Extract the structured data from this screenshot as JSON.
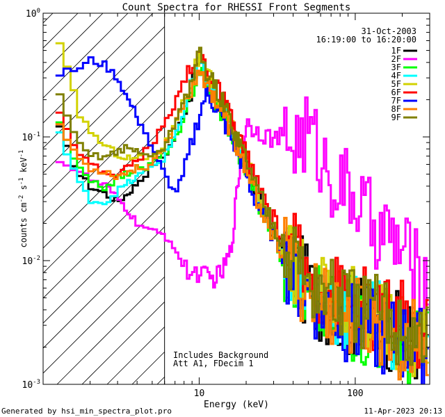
{
  "chart_data": {
    "type": "line",
    "title": "Count Spectra for RHESSI Front Segments",
    "xlabel": "Energy (keV)",
    "ylabel_parts": [
      "counts cm",
      "-2",
      " s",
      "-1",
      " keV",
      "-1"
    ],
    "x_scale": "log",
    "y_scale": "log",
    "xlim": [
      1,
      300
    ],
    "ylim": [
      0.001,
      1
    ],
    "x_major_ticks": [
      {
        "value": 10,
        "label": "10"
      },
      {
        "value": 100,
        "label": "100"
      }
    ],
    "y_major_ticks": [
      {
        "value": 0.001,
        "base": "10",
        "exp": "-3"
      },
      {
        "value": 0.01,
        "base": "10",
        "exp": "-2"
      },
      {
        "value": 0.1,
        "base": "10",
        "exp": "-1"
      },
      {
        "value": 1,
        "base": "10",
        "exp": "0"
      }
    ],
    "hatch_region": {
      "xmin": 1,
      "xmax": 6
    },
    "date": "31-Oct-2003",
    "time_range": "16:19:00 to 16:20:00",
    "annotations": [
      "Includes Background",
      "Att A1, FDecim 1"
    ],
    "series": [
      {
        "name": "1F",
        "color": "#000000",
        "profile": "std",
        "shift": 0.0,
        "low": [
          [
            1.2,
            0.17
          ],
          [
            1.3,
            0.1
          ],
          [
            1.5,
            0.07
          ],
          [
            1.7,
            0.05
          ],
          [
            2.0,
            0.04
          ],
          [
            2.5,
            0.035
          ],
          [
            3.0,
            0.03
          ],
          [
            3.5,
            0.035
          ],
          [
            4.0,
            0.042
          ],
          [
            4.5,
            0.05
          ],
          [
            5.0,
            0.06
          ],
          [
            6.0,
            0.07
          ],
          [
            7.0,
            0.1
          ],
          [
            8.0,
            0.16
          ]
        ]
      },
      {
        "name": "2F",
        "color": "#ff00ff",
        "profile": "det2",
        "shift": 0.0,
        "low": [
          [
            1.2,
            0.07
          ],
          [
            1.4,
            0.06
          ],
          [
            1.6,
            0.055
          ],
          [
            1.8,
            0.05
          ],
          [
            2.0,
            0.045
          ],
          [
            2.5,
            0.04
          ],
          [
            3.0,
            0.032
          ],
          [
            3.5,
            0.025
          ],
          [
            4.0,
            0.02
          ],
          [
            5.0,
            0.017
          ],
          [
            6.0,
            0.016
          ]
        ]
      },
      {
        "name": "3F",
        "color": "#00ff00",
        "profile": "std",
        "shift": -0.03,
        "low": [
          [
            1.2,
            0.19
          ],
          [
            1.3,
            0.13
          ],
          [
            1.5,
            0.08
          ],
          [
            1.7,
            0.06
          ],
          [
            2.0,
            0.045
          ],
          [
            2.5,
            0.042
          ],
          [
            3.0,
            0.05
          ],
          [
            3.5,
            0.055
          ],
          [
            4.0,
            0.06
          ],
          [
            4.5,
            0.06
          ],
          [
            5.0,
            0.065
          ],
          [
            6.0,
            0.08
          ],
          [
            7.0,
            0.1
          ],
          [
            8.0,
            0.14
          ]
        ]
      },
      {
        "name": "4F",
        "color": "#00ffff",
        "profile": "std",
        "shift": 0.02,
        "low": [
          [
            1.2,
            0.15
          ],
          [
            1.3,
            0.09
          ],
          [
            1.5,
            0.06
          ],
          [
            1.7,
            0.04
          ],
          [
            2.0,
            0.03
          ],
          [
            2.5,
            0.028
          ],
          [
            3.0,
            0.035
          ],
          [
            3.5,
            0.04
          ],
          [
            4.0,
            0.045
          ],
          [
            4.5,
            0.05
          ],
          [
            5.0,
            0.055
          ],
          [
            6.0,
            0.065
          ],
          [
            7.0,
            0.1
          ],
          [
            8.0,
            0.15
          ]
        ]
      },
      {
        "name": "5F",
        "color": "#d2d200",
        "profile": "std",
        "shift": 0.05,
        "low": [
          [
            1.2,
            0.62
          ],
          [
            1.3,
            0.45
          ],
          [
            1.5,
            0.25
          ],
          [
            1.7,
            0.14
          ],
          [
            2.0,
            0.1
          ],
          [
            2.5,
            0.075
          ],
          [
            3.0,
            0.065
          ],
          [
            3.5,
            0.06
          ],
          [
            4.0,
            0.06
          ],
          [
            4.5,
            0.06
          ],
          [
            5.0,
            0.062
          ],
          [
            6.0,
            0.075
          ],
          [
            7.0,
            0.12
          ],
          [
            8.0,
            0.18
          ]
        ]
      },
      {
        "name": "6F",
        "color": "#ff0000",
        "profile": "std",
        "shift": 0.1,
        "low": [
          [
            1.2,
            0.18
          ],
          [
            1.3,
            0.12
          ],
          [
            1.5,
            0.08
          ],
          [
            1.7,
            0.06
          ],
          [
            2.0,
            0.048
          ],
          [
            2.5,
            0.04
          ],
          [
            3.0,
            0.04
          ],
          [
            3.5,
            0.045
          ],
          [
            4.0,
            0.052
          ],
          [
            4.5,
            0.06
          ],
          [
            5.0,
            0.07
          ],
          [
            6.0,
            0.1
          ],
          [
            7.0,
            0.15
          ],
          [
            8.0,
            0.25
          ]
        ]
      },
      {
        "name": "7F",
        "color": "#0000ff",
        "profile": "det7",
        "shift": 0.0,
        "low": [
          [
            1.2,
            0.32
          ],
          [
            1.5,
            0.34
          ],
          [
            1.8,
            0.37
          ],
          [
            2.0,
            0.42
          ],
          [
            2.5,
            0.38
          ],
          [
            3.0,
            0.3
          ],
          [
            3.5,
            0.2
          ],
          [
            4.0,
            0.15
          ],
          [
            4.5,
            0.11
          ],
          [
            5.0,
            0.08
          ],
          [
            6.0,
            0.05
          ],
          [
            7.0,
            0.035
          ]
        ]
      },
      {
        "name": "8F",
        "color": "#ff8000",
        "profile": "std",
        "shift": -0.02,
        "low": [
          [
            1.2,
            0.18
          ],
          [
            1.3,
            0.12
          ],
          [
            1.5,
            0.09
          ],
          [
            1.7,
            0.07
          ],
          [
            2.0,
            0.058
          ],
          [
            2.5,
            0.055
          ],
          [
            3.0,
            0.05
          ],
          [
            3.5,
            0.055
          ],
          [
            4.0,
            0.058
          ],
          [
            4.5,
            0.06
          ],
          [
            5.0,
            0.065
          ],
          [
            6.0,
            0.09
          ],
          [
            7.0,
            0.13
          ],
          [
            8.0,
            0.2
          ]
        ]
      },
      {
        "name": "9F",
        "color": "#808000",
        "profile": "std",
        "shift": 0.07,
        "low": [
          [
            1.2,
            0.27
          ],
          [
            1.3,
            0.16
          ],
          [
            1.5,
            0.1
          ],
          [
            1.7,
            0.075
          ],
          [
            2.0,
            0.06
          ],
          [
            2.5,
            0.06
          ],
          [
            3.0,
            0.065
          ],
          [
            3.5,
            0.07
          ],
          [
            4.0,
            0.065
          ],
          [
            4.5,
            0.06
          ],
          [
            5.0,
            0.062
          ],
          [
            6.0,
            0.07
          ],
          [
            7.0,
            0.11
          ],
          [
            8.0,
            0.17
          ]
        ]
      }
    ],
    "profiles": {
      "std": [
        [
          8.0,
          0.16
        ],
        [
          9.0,
          0.25
        ],
        [
          10.0,
          0.4
        ],
        [
          11.0,
          0.3
        ],
        [
          13.0,
          0.2
        ],
        [
          15.0,
          0.14
        ],
        [
          17.0,
          0.09
        ],
        [
          20.0,
          0.06
        ],
        [
          22.0,
          0.04
        ],
        [
          25.0,
          0.028
        ],
        [
          30.0,
          0.017
        ],
        [
          35.0,
          0.011
        ],
        [
          40.0,
          0.009
        ],
        [
          50.0,
          0.006
        ],
        [
          60.0,
          0.005
        ],
        [
          80.0,
          0.004
        ],
        [
          100.0,
          0.0035
        ],
        [
          150.0,
          0.003
        ],
        [
          200.0,
          0.0025
        ],
        [
          300.0,
          0.002
        ]
      ],
      "det2": [
        [
          6.0,
          0.016
        ],
        [
          7.0,
          0.013
        ],
        [
          8.0,
          0.0085
        ],
        [
          9.0,
          0.008
        ],
        [
          10.0,
          0.008
        ],
        [
          12.0,
          0.007
        ],
        [
          14.0,
          0.008
        ],
        [
          16.0,
          0.012
        ],
        [
          17.0,
          0.026
        ],
        [
          18.0,
          0.05
        ],
        [
          20.0,
          0.13
        ],
        [
          25.0,
          0.11
        ],
        [
          30.0,
          0.095
        ],
        [
          35.0,
          0.1
        ],
        [
          40.0,
          0.09
        ],
        [
          50.0,
          0.11
        ],
        [
          60.0,
          0.07
        ],
        [
          70.0,
          0.05
        ],
        [
          80.0,
          0.04
        ],
        [
          100.0,
          0.032
        ],
        [
          120.0,
          0.022
        ],
        [
          150.0,
          0.017
        ],
        [
          200.0,
          0.012
        ],
        [
          250.0,
          0.008
        ],
        [
          300.0,
          0.006
        ]
      ],
      "det7": [
        [
          7.0,
          0.035
        ],
        [
          8.0,
          0.05
        ],
        [
          9.0,
          0.09
        ],
        [
          10.0,
          0.15
        ],
        [
          11.0,
          0.22
        ],
        [
          12.0,
          0.2
        ],
        [
          14.0,
          0.14
        ],
        [
          16.0,
          0.1
        ],
        [
          18.0,
          0.07
        ],
        [
          20.0,
          0.05
        ],
        [
          22.0,
          0.035
        ],
        [
          25.0,
          0.025
        ],
        [
          30.0,
          0.016
        ],
        [
          35.0,
          0.011
        ],
        [
          40.0,
          0.008
        ],
        [
          50.0,
          0.0055
        ],
        [
          60.0,
          0.0045
        ],
        [
          80.0,
          0.0035
        ],
        [
          100.0,
          0.003
        ],
        [
          150.0,
          0.0025
        ],
        [
          200.0,
          0.0022
        ],
        [
          300.0,
          0.0018
        ]
      ]
    }
  },
  "footer": {
    "left": "Generated by hsi_min_spectra_plot.pro",
    "right": "11-Apr-2023 20:13"
  }
}
